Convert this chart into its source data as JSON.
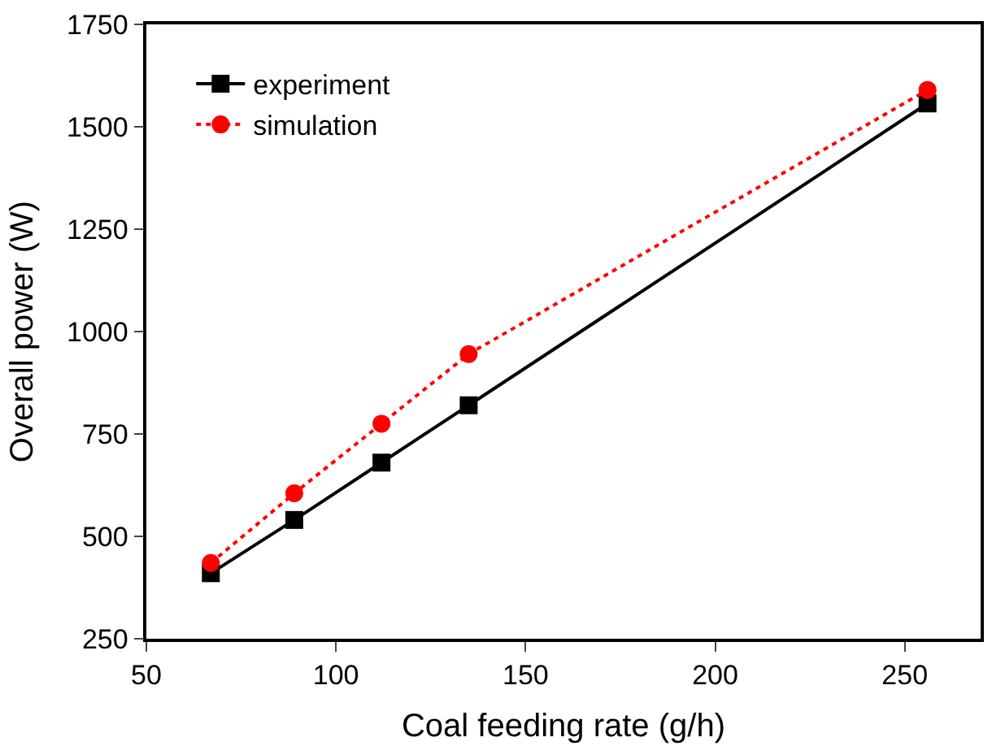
{
  "chart_data": {
    "type": "line",
    "xlabel": "Coal feeding rate (g/h)",
    "ylabel": "Overall power (W)",
    "x": [
      67,
      89,
      112,
      135,
      256
    ],
    "series": [
      {
        "name": "experiment",
        "color": "#000000",
        "values": [
          410,
          540,
          680,
          820,
          1557
        ],
        "marker": "square",
        "line_style": "solid"
      },
      {
        "name": "simulation",
        "color": "#ff0000",
        "values": [
          435,
          605,
          775,
          945,
          1590
        ],
        "marker": "circle",
        "line_style": "dotted"
      }
    ],
    "xlim": [
      50,
      270
    ],
    "xticks": [
      50,
      100,
      150,
      200,
      250
    ],
    "ylim": [
      250,
      1750
    ],
    "yticks": [
      250,
      500,
      750,
      1000,
      1250,
      1500,
      1750
    ],
    "legend": "top left"
  }
}
